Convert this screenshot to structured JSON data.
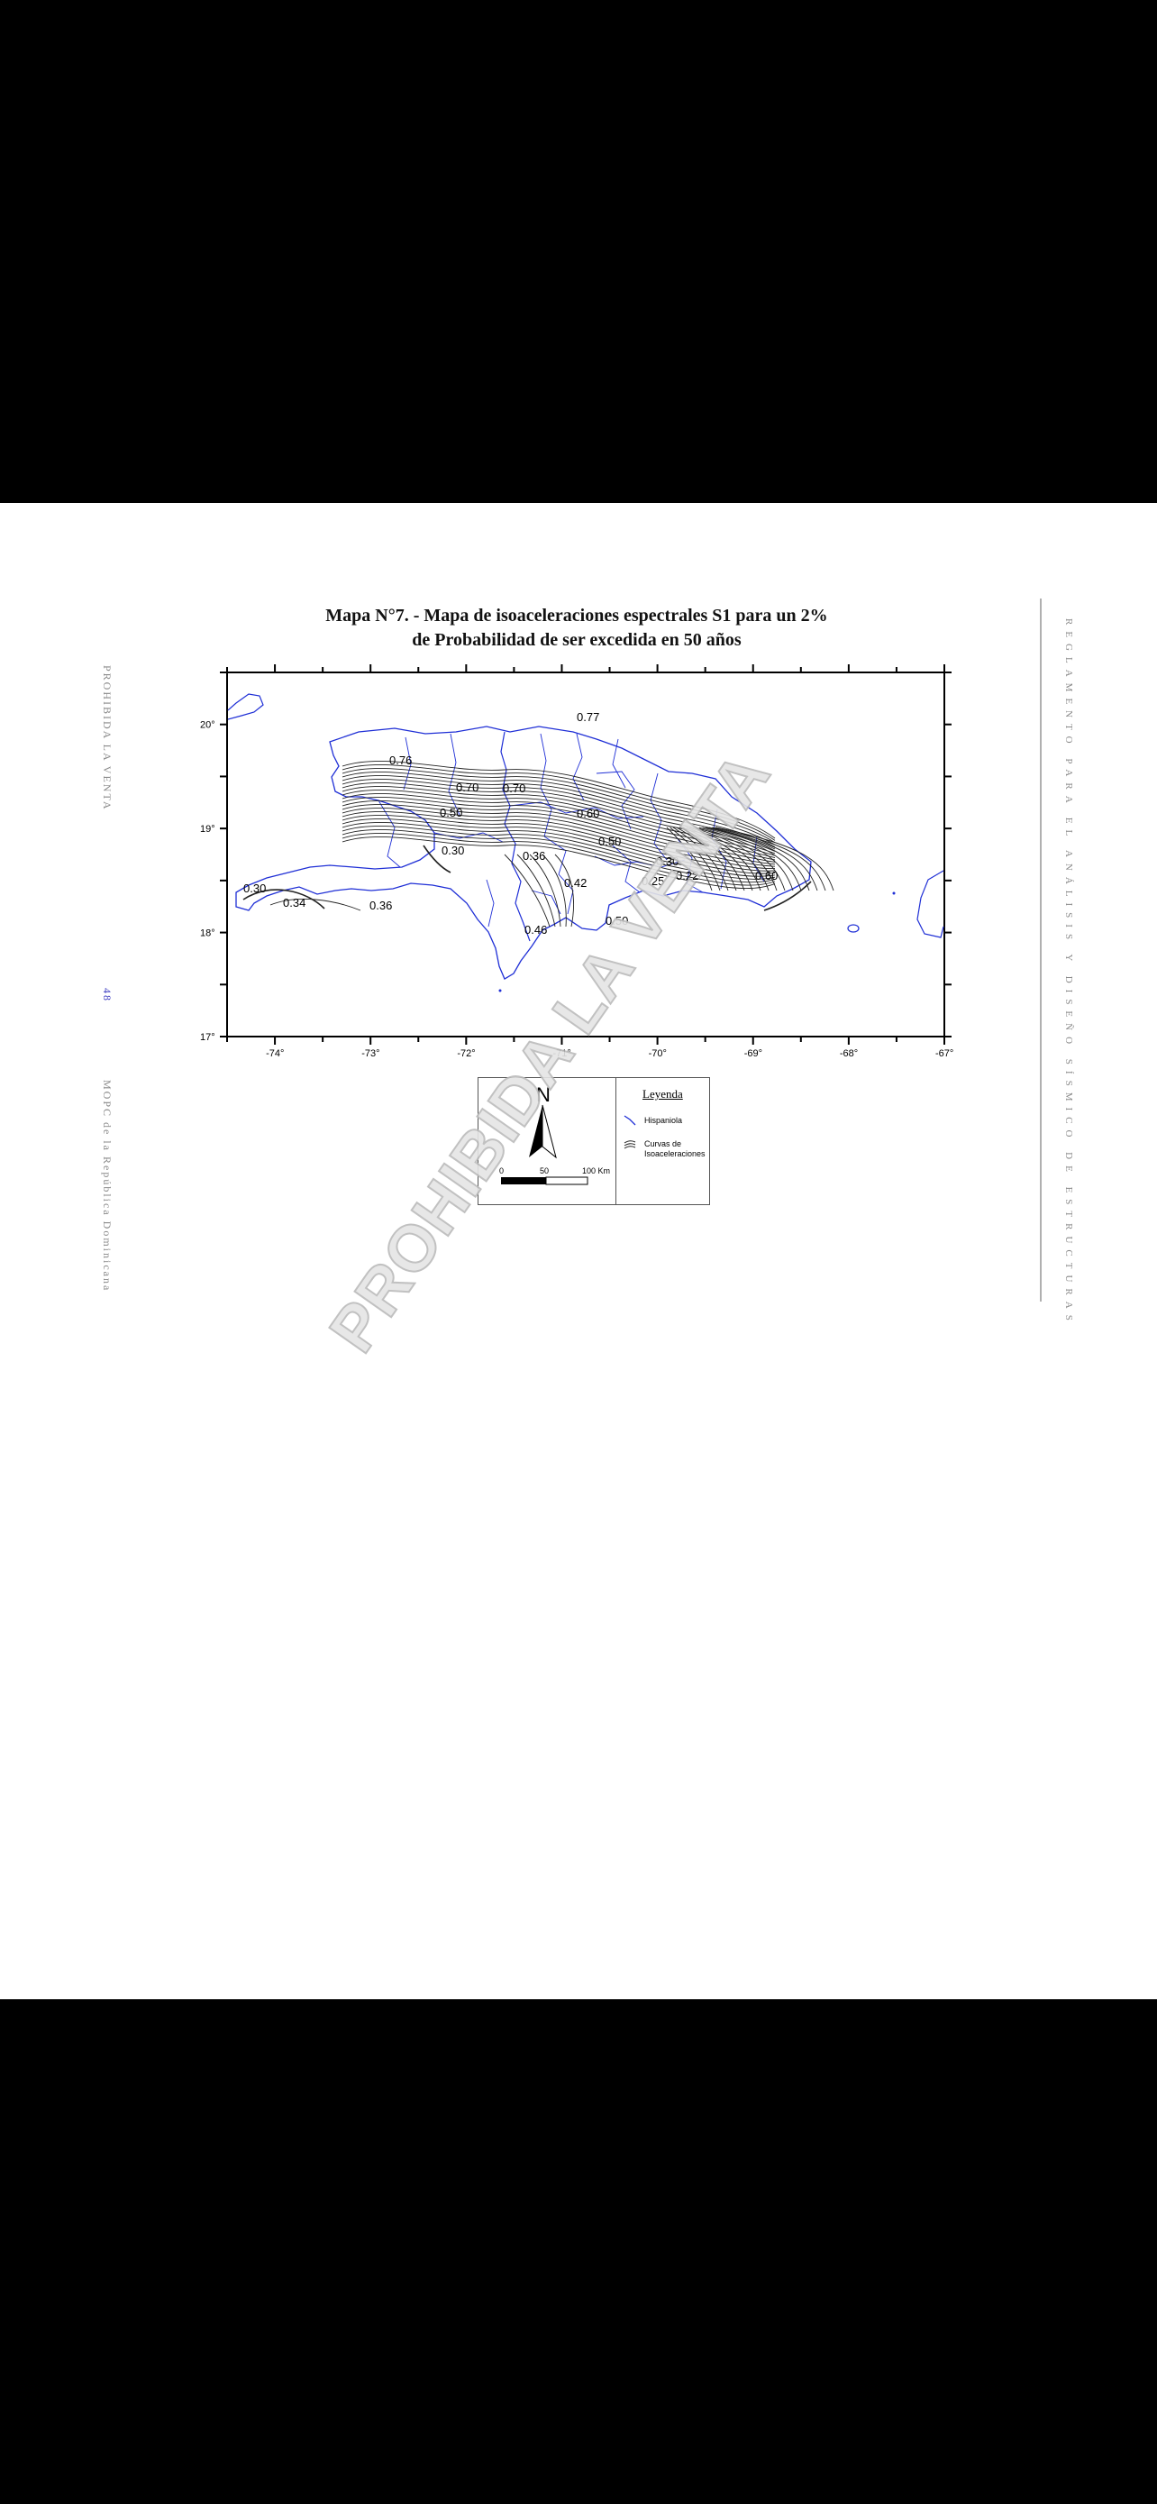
{
  "page": {
    "title_line1": "Mapa N°7. - Mapa de isoaceleraciones espectrales S1 para un  2%",
    "title_line2": "de  Probabilidad de ser excedida en 50 años",
    "left_margin_top": "PROHIBIDA LA VENTA",
    "page_number": "48",
    "left_margin_bottom": "MOPC de la República Dominicana",
    "right_margin": "REGLAMENTO PARA EL ANÁLISIS Y DISEÑO SÍSMICO DE ESTRUCTURAS",
    "watermark": "PROHIBIDA LA VENTA"
  },
  "map": {
    "lat_labels": [
      "20°",
      "19°",
      "18°",
      "17°"
    ],
    "lon_labels": [
      "-74°",
      "-73°",
      "-72°",
      "-71°",
      "-70°",
      "-69°",
      "-68°",
      "-67°"
    ],
    "iso_labels": [
      "0.70",
      "0.77",
      "0.70",
      "0.76",
      "0.50",
      "0.60",
      "0.50",
      "0.30",
      "0.36",
      "0.30",
      "0.25",
      "0.22",
      "0.60",
      "0.30",
      "0.34",
      "0.36",
      "0.42",
      "0.46",
      "0.50"
    ],
    "colors": {
      "coast": "#1f2fd6",
      "contour": "#222222"
    }
  },
  "legend": {
    "north_label": "N",
    "scale_0": "0",
    "scale_50": "50",
    "scale_100": "100  Km",
    "title": "Leyenda",
    "item1": "Hispaniola",
    "item2_line1": "Curvas de",
    "item2_line2": "Isoaceleraciones"
  }
}
